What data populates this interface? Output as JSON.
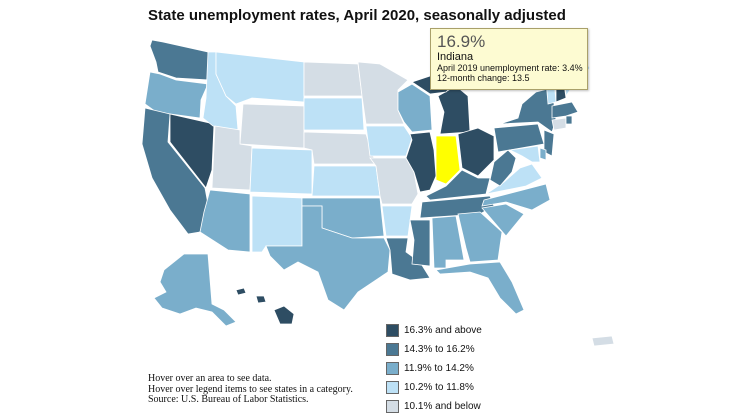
{
  "title": "State unemployment rates, April 2020, seasonally adjusted",
  "tooltip": {
    "value": "16.9%",
    "state": "Indiana",
    "line1": "April 2019 unemployment rate: 3.4%",
    "line2": "12-month change: 13.5"
  },
  "legend": [
    {
      "label": "16.3% and above",
      "color": "#2e4d63"
    },
    {
      "label": "14.3% to 16.2%",
      "color": "#4b7893"
    },
    {
      "label": "11.9% to 14.2%",
      "color": "#7aaecb"
    },
    {
      "label": "10.2% to 11.8%",
      "color": "#bde1f6"
    },
    {
      "label": "10.1% and below",
      "color": "#d4dde5"
    }
  ],
  "highlight_color": "#ffff00",
  "notes": [
    "Hover over an area to see data.",
    "Hover over legend items to see states in a category.",
    "Source: U.S. Bureau of Labor Statistics."
  ],
  "states": [
    {
      "abbr": "WA",
      "cat": 1
    },
    {
      "abbr": "OR",
      "cat": 2
    },
    {
      "abbr": "CA",
      "cat": 1
    },
    {
      "abbr": "NV",
      "cat": 0
    },
    {
      "abbr": "ID",
      "cat": 3
    },
    {
      "abbr": "MT",
      "cat": 3
    },
    {
      "abbr": "WY",
      "cat": 4
    },
    {
      "abbr": "UT",
      "cat": 4
    },
    {
      "abbr": "AZ",
      "cat": 2
    },
    {
      "abbr": "CO",
      "cat": 3
    },
    {
      "abbr": "NM",
      "cat": 3
    },
    {
      "abbr": "ND",
      "cat": 4
    },
    {
      "abbr": "SD",
      "cat": 3
    },
    {
      "abbr": "NE",
      "cat": 4
    },
    {
      "abbr": "KS",
      "cat": 3
    },
    {
      "abbr": "OK",
      "cat": 2
    },
    {
      "abbr": "TX",
      "cat": 2
    },
    {
      "abbr": "MN",
      "cat": 4
    },
    {
      "abbr": "IA",
      "cat": 3
    },
    {
      "abbr": "MO",
      "cat": 4
    },
    {
      "abbr": "AR",
      "cat": 3
    },
    {
      "abbr": "LA",
      "cat": 1
    },
    {
      "abbr": "WI",
      "cat": 2
    },
    {
      "abbr": "IL",
      "cat": 0
    },
    {
      "abbr": "MI",
      "cat": 0
    },
    {
      "abbr": "IN",
      "cat": -1
    },
    {
      "abbr": "OH",
      "cat": 0
    },
    {
      "abbr": "KY",
      "cat": 1
    },
    {
      "abbr": "TN",
      "cat": 1
    },
    {
      "abbr": "MS",
      "cat": 1
    },
    {
      "abbr": "AL",
      "cat": 2
    },
    {
      "abbr": "GA",
      "cat": 2
    },
    {
      "abbr": "FL",
      "cat": 2
    },
    {
      "abbr": "SC",
      "cat": 2
    },
    {
      "abbr": "NC",
      "cat": 2
    },
    {
      "abbr": "VA",
      "cat": 3
    },
    {
      "abbr": "WV",
      "cat": 1
    },
    {
      "abbr": "PA",
      "cat": 1
    },
    {
      "abbr": "NY",
      "cat": 1
    },
    {
      "abbr": "NJ",
      "cat": 1
    },
    {
      "abbr": "DE",
      "cat": 2
    },
    {
      "abbr": "MD",
      "cat": 3
    },
    {
      "abbr": "CT",
      "cat": 4
    },
    {
      "abbr": "RI",
      "cat": 1
    },
    {
      "abbr": "MA",
      "cat": 1
    },
    {
      "abbr": "VT",
      "cat": 3
    },
    {
      "abbr": "NH",
      "cat": 0
    },
    {
      "abbr": "ME",
      "cat": 3
    },
    {
      "abbr": "AK",
      "cat": 2
    },
    {
      "abbr": "HI",
      "cat": 0
    },
    {
      "abbr": "PR",
      "cat": 4
    }
  ]
}
